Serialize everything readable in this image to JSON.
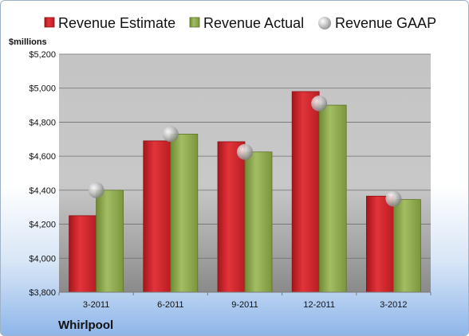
{
  "chart_data": {
    "type": "bar",
    "unit_label": "$millions",
    "company": "Whirlpool",
    "categories": [
      "3-2011",
      "6-2011",
      "9-2011",
      "12-2011",
      "3-2012"
    ],
    "ylim": [
      3800,
      5200
    ],
    "yticks": [
      3800,
      4000,
      4200,
      4400,
      4600,
      4800,
      5000,
      5200
    ],
    "ytick_labels": [
      "$3,800",
      "$4,000",
      "$4,200",
      "$4,400",
      "$4,600",
      "$4,800",
      "$5,000",
      "$5,200"
    ],
    "grid": true,
    "legend_position": "top",
    "series": [
      {
        "name": "Revenue Estimate",
        "kind": "bar",
        "color": "#d4252b",
        "values": [
          4250,
          4690,
          4685,
          4980,
          4365
        ]
      },
      {
        "name": "Revenue Actual",
        "kind": "bar",
        "color": "#8faa4c",
        "values": [
          4400,
          4730,
          4625,
          4900,
          4345
        ]
      },
      {
        "name": "Revenue GAAP",
        "kind": "marker",
        "color": "#b0b0b0",
        "values": [
          4400,
          4730,
          4625,
          4910,
          4350
        ]
      }
    ]
  }
}
